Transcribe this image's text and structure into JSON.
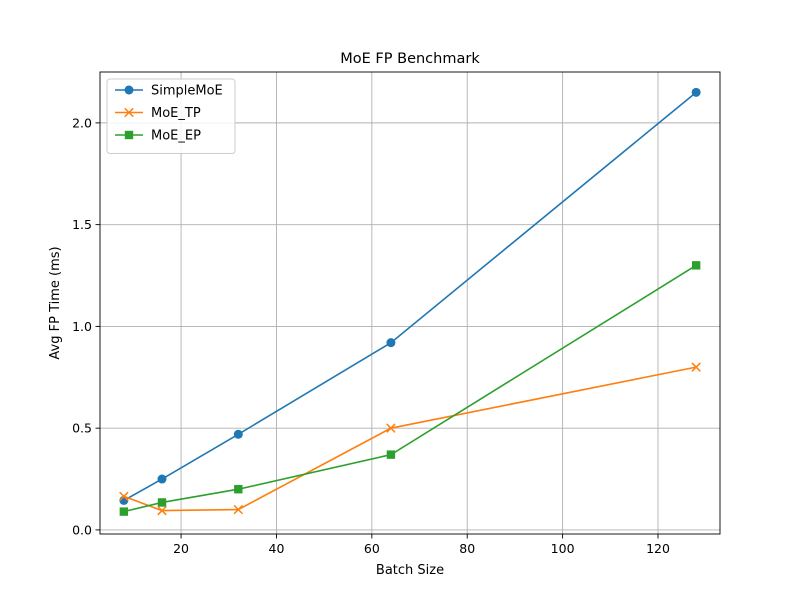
{
  "chart_data": {
    "type": "line",
    "title": "MoE FP Benchmark",
    "xlabel": "Batch Size",
    "ylabel": "Avg FP Time (ms)",
    "xlim": [
      3.0,
      133.0
    ],
    "ylim": [
      -0.02,
      2.25
    ],
    "xticks": [
      20,
      40,
      60,
      80,
      100,
      120
    ],
    "yticks": [
      0.0,
      0.5,
      1.0,
      1.5,
      2.0
    ],
    "grid": true,
    "legend_position": "upper-left",
    "x": [
      8,
      16,
      32,
      64,
      128
    ],
    "series": [
      {
        "name": "SimpleMoE",
        "color": "#1f77b4",
        "marker": "circle",
        "values": [
          0.145,
          0.25,
          0.47,
          0.92,
          2.15
        ]
      },
      {
        "name": "MoE_TP",
        "color": "#ff7f0e",
        "marker": "x",
        "values": [
          0.165,
          0.095,
          0.1,
          0.5,
          0.8
        ]
      },
      {
        "name": "MoE_EP",
        "color": "#2ca02c",
        "marker": "square",
        "values": [
          0.09,
          0.135,
          0.2,
          0.37,
          1.3
        ]
      }
    ]
  }
}
